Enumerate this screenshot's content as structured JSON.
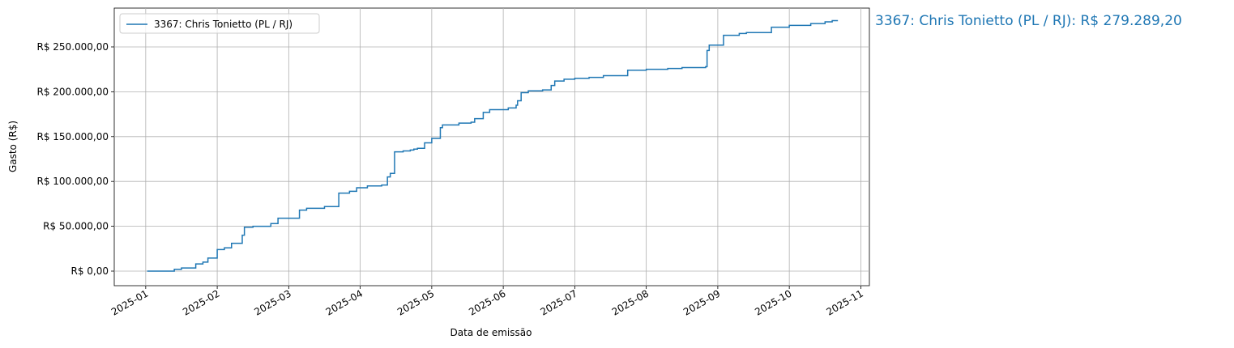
{
  "chart_data": {
    "type": "line",
    "drawstyle": "steps-post",
    "x_label": "Data de emissão",
    "y_label": "Gasto (R$)",
    "annotation": "3367: Chris Tonietto (PL / RJ): R$ 279.289,20",
    "x": [
      0.02,
      0.4,
      0.5,
      0.7,
      0.8,
      0.87,
      1.0,
      1.1,
      1.2,
      1.35,
      1.38,
      1.5,
      1.75,
      1.85,
      2.15,
      2.25,
      2.5,
      2.7,
      2.85,
      2.95,
      3.1,
      3.3,
      3.38,
      3.42,
      3.48,
      3.6,
      3.7,
      3.75,
      3.8,
      3.9,
      4.0,
      4.12,
      4.15,
      4.38,
      4.55,
      4.6,
      4.72,
      4.81,
      5.07,
      5.18,
      5.2,
      5.25,
      5.35,
      5.55,
      5.67,
      5.72,
      5.85,
      6.0,
      6.2,
      6.4,
      6.74,
      7.0,
      7.3,
      7.5,
      7.83,
      7.85,
      7.88,
      8.08,
      8.3,
      8.4,
      8.75,
      9.0,
      9.3,
      9.5,
      9.6,
      9.68
    ],
    "series": [
      {
        "name": "3367: Chris Tonietto (PL / RJ)",
        "color": "#1f77b4",
        "values": [
          0,
          2000,
          3500,
          8000,
          10000,
          14500,
          24000,
          26000,
          31000,
          40000,
          49000,
          50000,
          53000,
          59000,
          68000,
          70000,
          72000,
          87000,
          89000,
          93000,
          95000,
          96000,
          105000,
          109000,
          133000,
          134000,
          135000,
          136000,
          137000,
          143000,
          148000,
          160000,
          163000,
          165000,
          166000,
          170000,
          177000,
          180000,
          182000,
          185000,
          190000,
          199000,
          201000,
          202000,
          207000,
          212000,
          214000,
          215000,
          216000,
          218000,
          224000,
          225000,
          226000,
          227000,
          228000,
          246000,
          252000,
          263000,
          265000,
          266000,
          272000,
          274000,
          276000,
          278000,
          279289.2,
          279289.2
        ]
      }
    ],
    "xlim": [
      -0.44,
      10.12
    ],
    "xticks": [
      {
        "value": 0,
        "label": "2025-01"
      },
      {
        "value": 1,
        "label": "2025-02"
      },
      {
        "value": 2,
        "label": "2025-03"
      },
      {
        "value": 3,
        "label": "2025-04"
      },
      {
        "value": 4,
        "label": "2025-05"
      },
      {
        "value": 5,
        "label": "2025-06"
      },
      {
        "value": 6,
        "label": "2025-07"
      },
      {
        "value": 7,
        "label": "2025-08"
      },
      {
        "value": 8,
        "label": "2025-09"
      },
      {
        "value": 9,
        "label": "2025-10"
      },
      {
        "value": 10,
        "label": "2025-11"
      }
    ],
    "ylim": [
      -16245,
      293300
    ],
    "yticks": [
      {
        "value": 0,
        "label": "R$ 0,00"
      },
      {
        "value": 50000,
        "label": "R$ 50.000,00"
      },
      {
        "value": 100000,
        "label": "R$ 100.000,00"
      },
      {
        "value": 150000,
        "label": "R$ 150.000,00"
      },
      {
        "value": 200000,
        "label": "R$ 200.000,00"
      },
      {
        "value": 250000,
        "label": "R$ 250.000,00"
      }
    ],
    "grid": true,
    "legend": "upper left"
  }
}
